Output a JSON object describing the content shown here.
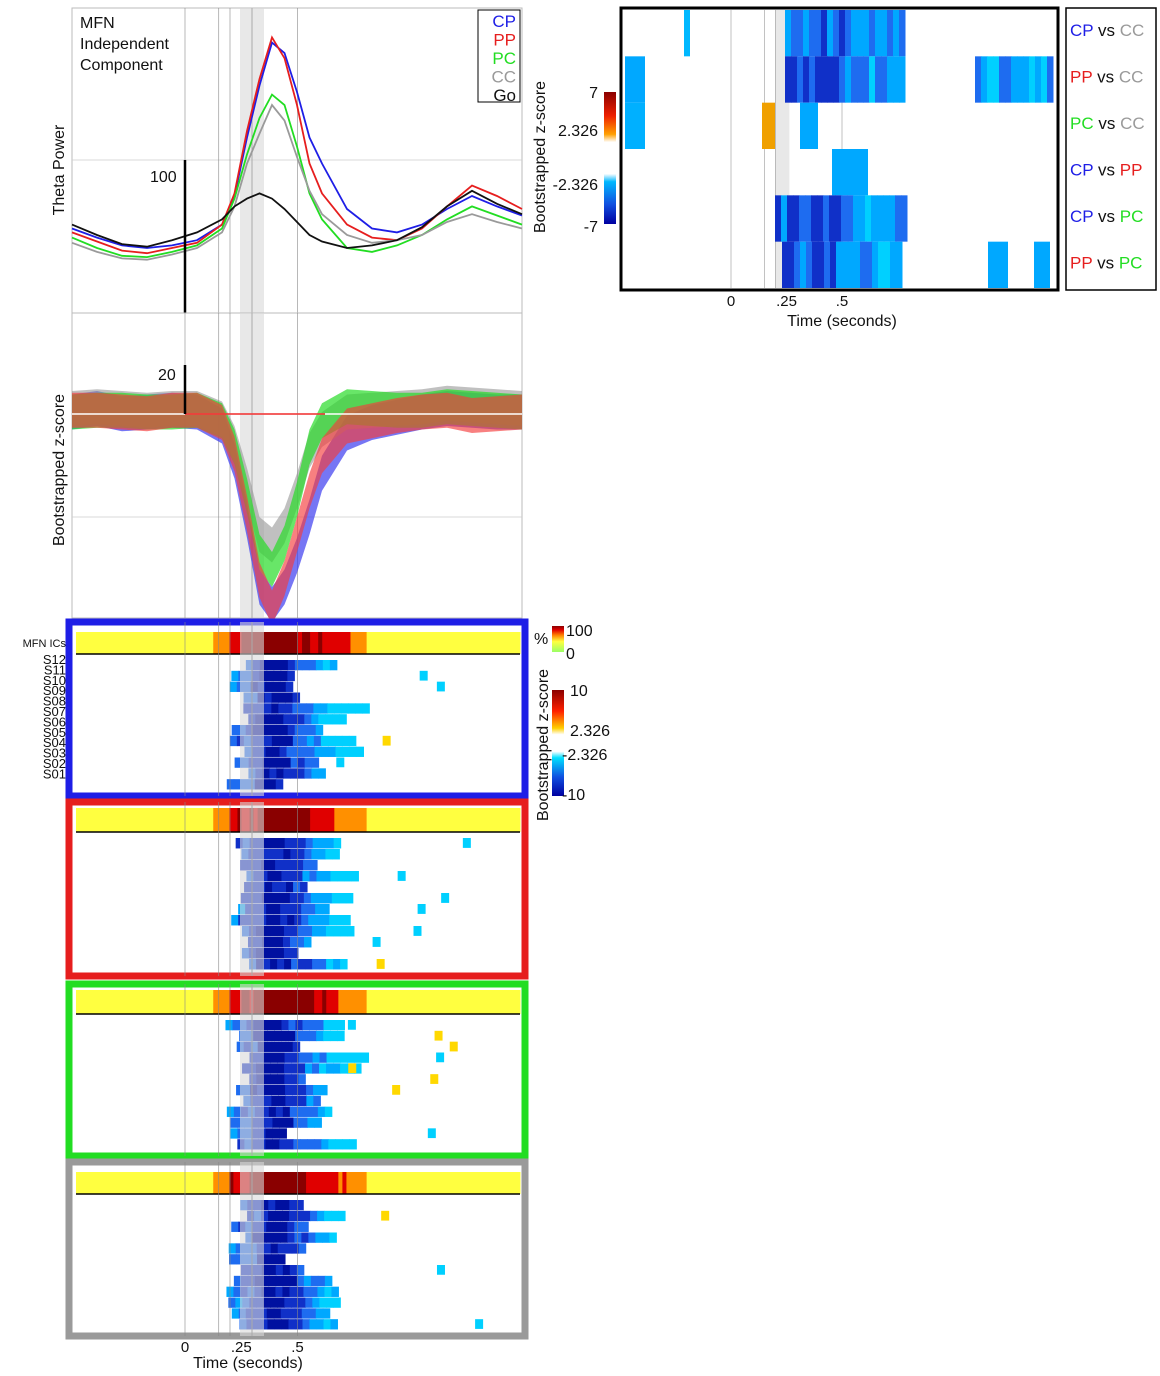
{
  "colors": {
    "CP": "#1e1ee6",
    "PP": "#e61e1e",
    "PC": "#22dd22",
    "CC": "#9a9a9a",
    "Go": "#111111"
  },
  "time_axis": {
    "ticks": [
      "0",
      ".25",
      ".5"
    ],
    "label": "Time (seconds)"
  },
  "theta_panel": {
    "title_lines": [
      "MFN",
      "Independent",
      "Component"
    ],
    "ylabel": "Theta Power",
    "scale_label": "100",
    "legend": [
      "CP",
      "PP",
      "PC",
      "CC",
      "Go"
    ]
  },
  "zscore_panel": {
    "ylabel": "Bootstrapped z-score",
    "scale_label": "20"
  },
  "raster_panel": {
    "row_labels": [
      "MFN ICs",
      "S12",
      "S11",
      "S10",
      "S09",
      "S08",
      "S07",
      "S06",
      "S05",
      "S04",
      "S03",
      "S02",
      "S01"
    ],
    "percent_colorbar": {
      "symbol": "%",
      "max": "100",
      "min": "0"
    },
    "z_colorbar": {
      "label": "Bootstrapped z-score",
      "ticks": [
        "10",
        "2.326",
        "-2.326",
        "-10"
      ]
    },
    "box_conditions": [
      "CP",
      "PP",
      "PC",
      "CC"
    ]
  },
  "comparison_panel": {
    "ylabel": "Bootstrapped z-score",
    "colorbar_ticks": [
      "7",
      "2.326",
      "-2.326",
      "-7"
    ],
    "comparisons": [
      {
        "a": "CP",
        "vs": "vs",
        "b": "CC"
      },
      {
        "a": "PP",
        "vs": "vs",
        "b": "CC"
      },
      {
        "a": "PC",
        "vs": "vs",
        "b": "CC"
      },
      {
        "a": "CP",
        "vs": "vs",
        "b": "PP"
      },
      {
        "a": "CP",
        "vs": "vs",
        "b": "PC"
      },
      {
        "a": "PP",
        "vs": "vs",
        "b": "PC"
      }
    ]
  },
  "chart_data": [
    {
      "type": "line",
      "title": "MFN Independent Component",
      "ylabel": "Theta Power",
      "xlabel": "",
      "x": [
        -0.5,
        -0.4,
        -0.3,
        -0.2,
        -0.1,
        0.0,
        0.1,
        0.15,
        0.2,
        0.25,
        0.3,
        0.35,
        0.4,
        0.45,
        0.5,
        0.6,
        0.7,
        0.8,
        0.9,
        1.0,
        1.1,
        1.2,
        1.3
      ],
      "series": [
        {
          "name": "CP",
          "values": [
            55,
            48,
            42,
            40,
            42,
            46,
            58,
            80,
            125,
            165,
            198,
            190,
            160,
            125,
            105,
            70,
            55,
            52,
            58,
            70,
            80,
            72,
            65
          ]
        },
        {
          "name": "PP",
          "values": [
            52,
            45,
            38,
            36,
            40,
            44,
            58,
            82,
            130,
            170,
            202,
            186,
            150,
            105,
            82,
            58,
            48,
            46,
            55,
            72,
            88,
            80,
            70
          ]
        },
        {
          "name": "PC",
          "values": [
            48,
            40,
            34,
            33,
            37,
            42,
            55,
            78,
            112,
            140,
            158,
            150,
            118,
            82,
            62,
            40,
            37,
            42,
            50,
            62,
            72,
            65,
            58
          ]
        },
        {
          "name": "CC",
          "values": [
            44,
            37,
            32,
            31,
            35,
            40,
            52,
            72,
            105,
            128,
            150,
            138,
            110,
            84,
            66,
            50,
            44,
            46,
            50,
            60,
            66,
            60,
            55
          ]
        },
        {
          "name": "Go",
          "values": [
            58,
            50,
            43,
            41,
            46,
            52,
            62,
            72,
            78,
            82,
            78,
            70,
            60,
            50,
            45,
            40,
            42,
            46,
            56,
            72,
            84,
            74,
            66
          ]
        }
      ]
    },
    {
      "type": "area",
      "ylabel": "Bootstrapped z-score",
      "xlabel": "",
      "x": [
        -0.5,
        -0.4,
        -0.3,
        -0.2,
        -0.1,
        0.0,
        0.1,
        0.15,
        0.2,
        0.25,
        0.3,
        0.35,
        0.4,
        0.45,
        0.5,
        0.6,
        0.7,
        0.8,
        0.9,
        1.0,
        1.1,
        1.2,
        1.3
      ],
      "series": [
        {
          "name": "CP",
          "values": [
            0,
            2,
            -1,
            0,
            1,
            0,
            -8,
            -28,
            -62,
            -100,
            -110,
            -100,
            -82,
            -60,
            -35,
            -12,
            -6,
            -3,
            0,
            2,
            1,
            0,
            0
          ]
        },
        {
          "name": "PP",
          "values": [
            1,
            1,
            0,
            -1,
            1,
            1,
            -6,
            -24,
            -58,
            -96,
            -112,
            -95,
            -70,
            -45,
            -25,
            -8,
            -5,
            -2,
            0,
            1,
            -2,
            -1,
            0
          ]
        },
        {
          "name": "PC",
          "values": [
            0,
            1,
            1,
            0,
            0,
            1,
            -5,
            -20,
            -48,
            -80,
            -90,
            -75,
            -50,
            -20,
            -5,
            3,
            2,
            1,
            1,
            3,
            2,
            1,
            0
          ]
        },
        {
          "name": "CC",
          "values": [
            2,
            3,
            2,
            1,
            2,
            2,
            -4,
            -18,
            -42,
            -70,
            -76,
            -65,
            -45,
            -22,
            -10,
            0,
            1,
            2,
            3,
            5,
            4,
            3,
            2
          ]
        }
      ]
    }
  ]
}
